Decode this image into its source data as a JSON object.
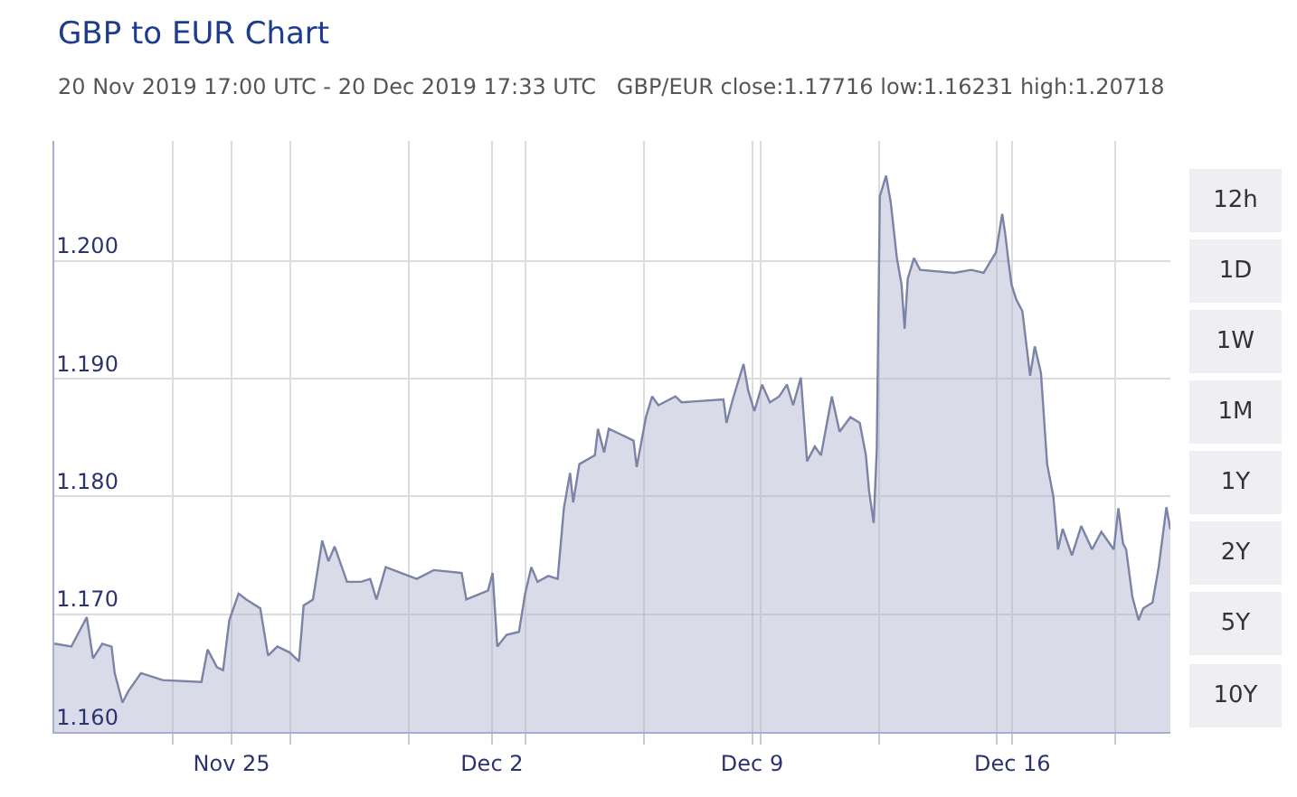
{
  "chart_data": {
    "type": "area",
    "title": "GBP to EUR Chart",
    "subtitle": "20 Nov 2019 17:00 UTC - 20 Dec 2019 17:33 UTC   GBP/EUR close:1.17716 low:1.16231 high:1.20718",
    "annotations": [
      "12h",
      "1D",
      "1W",
      "1M",
      "1Y",
      "2Y",
      "5Y",
      "10Y"
    ],
    "series": [
      {
        "color": "#7b83a6",
        "x": [
          "2019-11-20T17:00",
          "2019-11-21T04:00",
          "2019-11-21T14:00",
          "2019-11-21T18:00",
          "2019-11-22T00:00",
          "2019-11-22T06:00",
          "2019-11-22T08:00",
          "2019-11-22T13:00",
          "2019-11-22T17:00",
          "2019-11-23T01:00",
          "2019-11-23T15:00",
          "2019-11-24T16:00",
          "2019-11-24T20:00",
          "2019-11-25T02:00",
          "2019-11-25T06:00",
          "2019-11-25T10:00",
          "2019-11-25T16:00",
          "2019-11-25T21:00",
          "2019-11-26T06:00",
          "2019-11-26T11:00",
          "2019-11-26T17:00",
          "2019-11-27T01:00",
          "2019-11-27T07:00",
          "2019-11-27T10:00",
          "2019-11-27T16:00",
          "2019-11-27T22:00",
          "2019-11-28T02:00",
          "2019-11-28T06:00",
          "2019-11-28T14:00",
          "2019-11-28T23:00",
          "2019-11-29T05:00",
          "2019-11-29T09:00",
          "2019-11-29T15:00",
          "2019-11-30T11:00",
          "2019-11-30T22:00",
          "2019-12-01T16:00",
          "2019-12-01T19:00",
          "2019-12-02T09:00",
          "2019-12-02T12:00",
          "2019-12-02T15:00",
          "2019-12-02T21:00",
          "2019-12-03T05:00",
          "2019-12-03T09:00",
          "2019-12-03T13:00",
          "2019-12-03T17:00",
          "2019-12-04T00:00",
          "2019-12-04T06:00",
          "2019-12-04T10:00",
          "2019-12-04T14:00",
          "2019-12-04T16:00",
          "2019-12-04T20:00",
          "2019-12-05T06:00",
          "2019-12-05T08:00",
          "2019-12-05T12:00",
          "2019-12-05T15:00",
          "2019-12-05T23:00",
          "2019-12-06T07:00",
          "2019-12-06T09:00",
          "2019-12-06T15:00",
          "2019-12-06T19:00",
          "2019-12-06T23:00",
          "2019-12-07T10:00",
          "2019-12-07T14:00",
          "2019-12-08T17:00",
          "2019-12-08T19:00",
          "2019-12-08T23:00",
          "2019-12-09T06:00",
          "2019-12-09T09:00",
          "2019-12-09T13:00",
          "2019-12-09T18:00",
          "2019-12-09T23:00",
          "2019-12-10T05:00",
          "2019-12-10T10:00",
          "2019-12-10T14:00",
          "2019-12-10T19:00",
          "2019-12-10T23:00",
          "2019-12-11T04:00",
          "2019-12-11T08:00",
          "2019-12-11T15:00",
          "2019-12-11T20:00",
          "2019-12-12T03:00",
          "2019-12-12T09:00",
          "2019-12-12T13:00",
          "2019-12-12T15:00",
          "2019-12-12T18:00",
          "2019-12-12T20:00",
          "2019-12-12T22:00",
          "2019-12-13T02:00",
          "2019-12-13T05:00",
          "2019-12-13T09:00",
          "2019-12-13T12:00",
          "2019-12-13T14:00",
          "2019-12-13T16:00",
          "2019-12-13T20:00",
          "2019-12-14T00:00",
          "2019-12-14T22:00",
          "2019-12-15T09:00",
          "2019-12-15T17:00",
          "2019-12-16T01:00",
          "2019-12-16T05:00",
          "2019-12-16T07:00",
          "2019-12-16T09:00",
          "2019-12-16T11:00",
          "2019-12-16T14:00",
          "2019-12-16T18:00",
          "2019-12-16T23:00",
          "2019-12-17T02:00",
          "2019-12-17T06:00",
          "2019-12-17T10:00",
          "2019-12-17T14:00",
          "2019-12-17T17:00",
          "2019-12-17T20:00",
          "2019-12-18T02:00",
          "2019-12-18T08:00",
          "2019-12-18T15:00",
          "2019-12-18T21:00",
          "2019-12-19T05:00",
          "2019-12-19T08:00",
          "2019-12-19T11:00",
          "2019-12-19T13:00",
          "2019-12-19T17:00",
          "2019-12-19T21:00",
          "2019-12-20T00:00",
          "2019-12-20T06:00",
          "2019-12-20T10:00",
          "2019-12-20T15:00",
          "2019-12-20T17:33"
        ],
        "values": [
          1.1675,
          1.16725,
          1.16975,
          1.16625,
          1.1675,
          1.16725,
          1.165,
          1.1625,
          1.1635,
          1.165,
          1.1644,
          1.16425,
          1.167,
          1.1655,
          1.16525,
          1.1695,
          1.17175,
          1.17125,
          1.1705,
          1.1665,
          1.16725,
          1.16675,
          1.166,
          1.17075,
          1.17125,
          1.17625,
          1.1745,
          1.17575,
          1.17275,
          1.17275,
          1.173,
          1.17125,
          1.174,
          1.173,
          1.17375,
          1.1735,
          1.17125,
          1.172,
          1.1735,
          1.16725,
          1.16825,
          1.1685,
          1.17175,
          1.174,
          1.17275,
          1.17325,
          1.173,
          1.179,
          1.182,
          1.1795,
          1.18275,
          1.1835,
          1.18575,
          1.18375,
          1.18575,
          1.18525,
          1.18475,
          1.1825,
          1.18675,
          1.1885,
          1.18775,
          1.1885,
          1.188,
          1.18825,
          1.18625,
          1.18825,
          1.19125,
          1.189,
          1.18725,
          1.1895,
          1.188,
          1.1885,
          1.1895,
          1.18775,
          1.1901,
          1.183,
          1.18425,
          1.1835,
          1.1885,
          1.1855,
          1.18675,
          1.18625,
          1.1835,
          1.1805,
          1.17775,
          1.184,
          1.2055,
          1.20725,
          1.205,
          1.20025,
          1.198,
          1.19425,
          1.1985,
          1.20025,
          1.19925,
          1.199,
          1.19925,
          1.199,
          1.20075,
          1.204,
          1.20225,
          1.2,
          1.198,
          1.19675,
          1.19575,
          1.19025,
          1.19275,
          1.1905,
          1.18275,
          1.18,
          1.1755,
          1.17725,
          1.175,
          1.1775,
          1.1755,
          1.177,
          1.1755,
          1.179,
          1.176,
          1.1755,
          1.1715,
          1.1695,
          1.1705,
          1.171,
          1.174,
          1.1791,
          1.1772
        ]
      }
    ],
    "xlim": [
      "2019-11-20T17:00",
      "2019-12-20T17:33"
    ],
    "xticks": [
      {
        "value": "2019-11-23T21:30",
        "label": null
      },
      {
        "value": "2019-11-25T11:30",
        "label": "Nov 25"
      },
      {
        "value": "2019-11-27T01:40",
        "label": null
      },
      {
        "value": "2019-11-30T06:00",
        "label": null
      },
      {
        "value": "2019-12-02T11:30",
        "label": "Dec 2"
      },
      {
        "value": "2019-12-03T09:30",
        "label": null
      },
      {
        "value": "2019-12-06T13:40",
        "label": null
      },
      {
        "value": "2019-12-09T11:30",
        "label": "Dec 9"
      },
      {
        "value": "2019-12-09T17:15",
        "label": null
      },
      {
        "value": "2019-12-12T21:30",
        "label": null
      },
      {
        "value": "2019-12-16T01:40",
        "label": null
      },
      {
        "value": "2019-12-16T11:30",
        "label": "Dec 16"
      },
      {
        "value": "2019-12-19T05:40",
        "label": null
      }
    ],
    "ylim": [
      1.16,
      1.2102
    ],
    "yticks": [
      {
        "value": 1.16,
        "label": "1.160"
      },
      {
        "value": 1.17,
        "label": "1.170"
      },
      {
        "value": 1.18,
        "label": "1.180"
      },
      {
        "value": 1.19,
        "label": "1.190"
      },
      {
        "value": 1.2,
        "label": "1.200"
      }
    ],
    "grid": true,
    "legend": false
  }
}
